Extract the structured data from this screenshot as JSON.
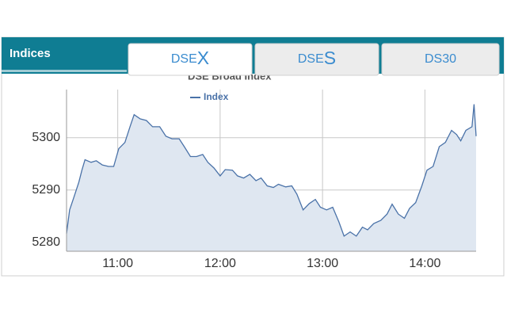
{
  "header": {
    "title": "Indices"
  },
  "tabs": [
    {
      "prefix": "DSE",
      "suffix": "X",
      "active": true
    },
    {
      "prefix": "DSE",
      "suffix": "S",
      "active": false
    },
    {
      "label": "DS30",
      "active": false
    }
  ],
  "chart_data": {
    "type": "area",
    "title": "DSE Broad Index",
    "x": [
      10.5,
      10.53,
      10.57,
      10.62,
      10.65,
      10.68,
      10.74,
      10.79,
      10.85,
      10.91,
      10.96,
      11.01,
      11.07,
      11.12,
      11.16,
      11.22,
      11.28,
      11.34,
      11.41,
      11.47,
      11.53,
      11.6,
      11.65,
      11.71,
      11.77,
      11.83,
      11.88,
      11.94,
      12.0,
      12.05,
      12.12,
      12.17,
      12.23,
      12.29,
      12.35,
      12.4,
      12.46,
      12.52,
      12.57,
      12.64,
      12.7,
      12.75,
      12.81,
      12.87,
      12.93,
      12.98,
      13.04,
      13.1,
      13.16,
      13.21,
      13.27,
      13.33,
      13.39,
      13.44,
      13.5,
      13.57,
      13.63,
      13.68,
      13.74,
      13.8,
      13.85,
      13.91,
      13.97,
      14.02,
      14.08,
      14.14,
      14.2,
      14.26,
      14.31,
      14.35,
      14.4,
      14.46,
      14.48,
      14.5
    ],
    "series": [
      {
        "name": "Index",
        "color": "#4a72a8",
        "fill": "#dfe7f1",
        "values": [
          5281.7,
          5286.2,
          5288.5,
          5291.5,
          5293.8,
          5295.8,
          5295.3,
          5295.6,
          5294.8,
          5294.5,
          5294.5,
          5297.9,
          5299.1,
          5302.1,
          5304.4,
          5303.6,
          5303.3,
          5302.1,
          5302.1,
          5300.3,
          5299.8,
          5299.8,
          5298.3,
          5296.4,
          5296.4,
          5296.8,
          5295.3,
          5294.2,
          5292.7,
          5293.9,
          5293.8,
          5292.7,
          5292.3,
          5293.0,
          5291.8,
          5292.3,
          5290.8,
          5290.5,
          5291.1,
          5290.6,
          5290.8,
          5289.2,
          5286.2,
          5287.4,
          5288.2,
          5286.7,
          5286.2,
          5286.7,
          5283.9,
          5281.2,
          5282.0,
          5281.2,
          5282.9,
          5282.4,
          5283.6,
          5284.2,
          5285.4,
          5287.3,
          5285.4,
          5284.6,
          5286.5,
          5287.6,
          5290.8,
          5293.8,
          5294.5,
          5298.3,
          5299.1,
          5301.4,
          5300.6,
          5299.4,
          5301.4,
          5302.1,
          5306.4,
          5300.3
        ]
      }
    ],
    "xlim": [
      10.5,
      14.5
    ],
    "xticks": [
      {
        "value": 11,
        "label": "11:00"
      },
      {
        "value": 12,
        "label": "12:00"
      },
      {
        "value": 13,
        "label": "13:00"
      },
      {
        "value": 14,
        "label": "14:00"
      }
    ],
    "ylim": [
      5278.3,
      5309.2
    ],
    "yticks": [
      5280,
      5290,
      5300
    ],
    "grid": true
  }
}
